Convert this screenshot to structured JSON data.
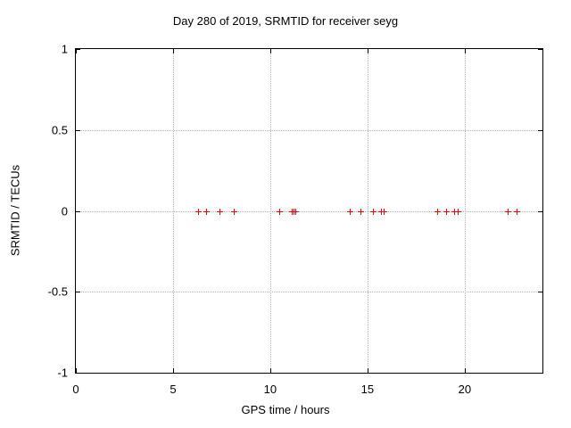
{
  "chart_data": {
    "type": "scatter",
    "title": "Day 280 of 2019, SRMTID for receiver seyg",
    "xlabel": "GPS time / hours",
    "ylabel": "SRMTID / TECUs",
    "xlim": [
      0,
      24
    ],
    "ylim": [
      -1,
      1
    ],
    "xticks": [
      0,
      5,
      10,
      15,
      20
    ],
    "yticks": [
      1,
      0.5,
      0,
      -0.5,
      -1
    ],
    "grid": true,
    "legend": "none",
    "marker": "plus",
    "marker_color": "#ff0000",
    "grid_color": "#b0b0b0",
    "border_color": "#000000",
    "background_color": "#ffffff",
    "series": [
      {
        "name": "SRMTID",
        "x": [
          6.3,
          6.7,
          7.4,
          8.1,
          10.45,
          11.1,
          11.2,
          11.3,
          14.1,
          14.65,
          15.3,
          15.7,
          15.85,
          18.6,
          19.05,
          19.45,
          19.65,
          22.2,
          22.65
        ],
        "y": [
          0,
          0,
          0,
          0,
          0,
          0,
          0,
          0,
          0,
          0,
          0,
          0,
          0,
          0,
          0,
          0,
          0,
          0,
          0
        ]
      }
    ]
  }
}
